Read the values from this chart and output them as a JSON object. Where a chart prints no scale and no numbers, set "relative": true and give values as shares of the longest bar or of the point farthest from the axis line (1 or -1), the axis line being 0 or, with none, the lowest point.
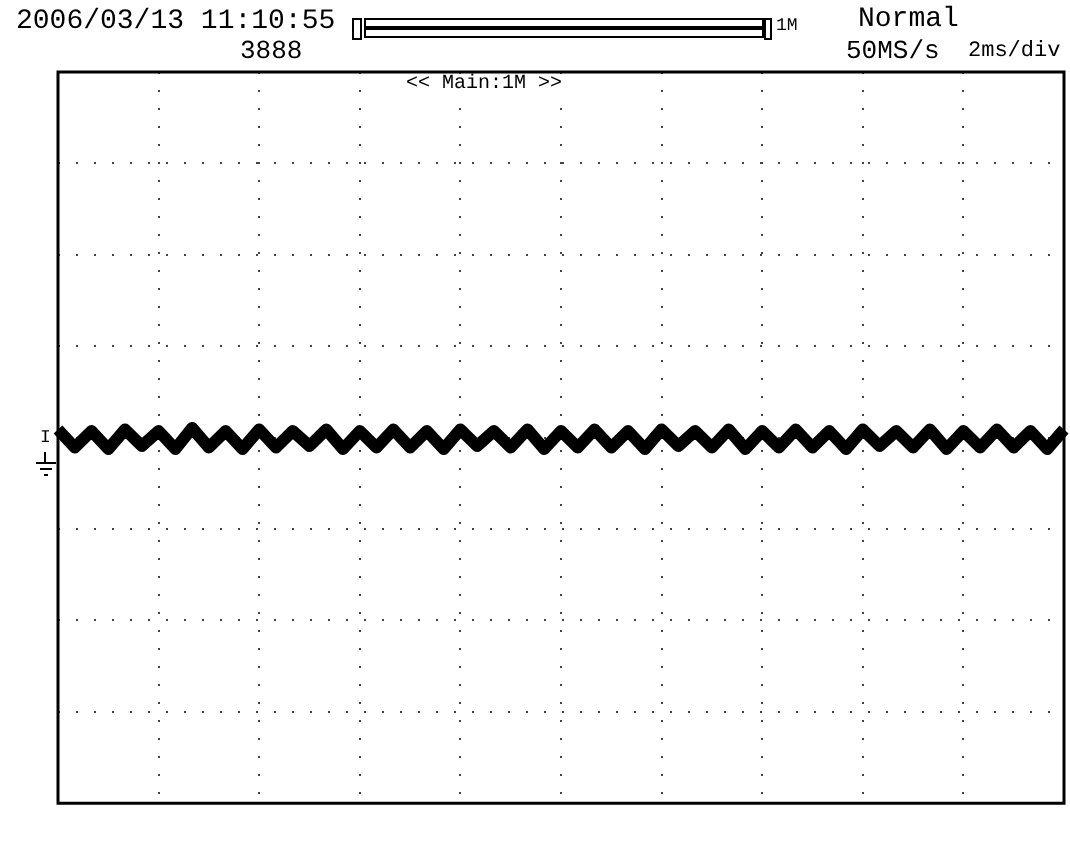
{
  "chart_data": {
    "type": "line",
    "relative": true,
    "grid": true,
    "legend": false,
    "marker": "none",
    "line_style": "solid",
    "color": "#000000",
    "annotations": [
      "2006/03/13 11:10:55",
      "1M",
      "Normal",
      "3888",
      "50MS/s",
      "2ms/div",
      "<< Main:1M >>",
      "I"
    ],
    "categories": [
      null,
      null,
      null,
      null,
      null,
      null,
      null,
      null,
      null,
      null,
      null,
      null,
      null,
      null,
      null,
      null,
      null,
      null,
      null,
      null,
      null,
      null,
      null,
      null,
      null,
      null,
      null,
      null,
      null,
      null,
      null,
      null,
      null,
      null,
      null,
      null,
      null,
      null,
      null,
      null,
      null,
      null,
      null,
      null,
      null,
      null,
      null,
      null,
      null,
      null,
      null,
      null,
      null,
      null,
      null,
      null,
      null,
      null,
      null,
      null,
      null
    ],
    "values": [
      0.9,
      -0.3,
      0.8,
      -0.4,
      0.9,
      -0.2,
      0.8,
      -0.4,
      1,
      -0.3,
      0.8,
      -0.4,
      0.9,
      -0.3,
      0.8,
      -0.2,
      0.9,
      -0.4,
      0.8,
      -0.3,
      0.9,
      -0.3,
      0.8,
      -0.4,
      0.9,
      -0.2,
      0.8,
      -0.3,
      0.9,
      -0.4,
      0.8,
      -0.3,
      0.9,
      -0.3,
      0.8,
      -0.4,
      0.9,
      -0.2,
      0.8,
      -0.3,
      0.9,
      -0.4,
      0.8,
      -0.3,
      0.9,
      -0.3,
      0.8,
      -0.4,
      0.9,
      -0.2,
      0.8,
      -0.3,
      0.9,
      -0.4,
      0.8,
      -0.3,
      0.9,
      -0.3,
      0.8,
      -0.4,
      0.9
    ]
  }
}
